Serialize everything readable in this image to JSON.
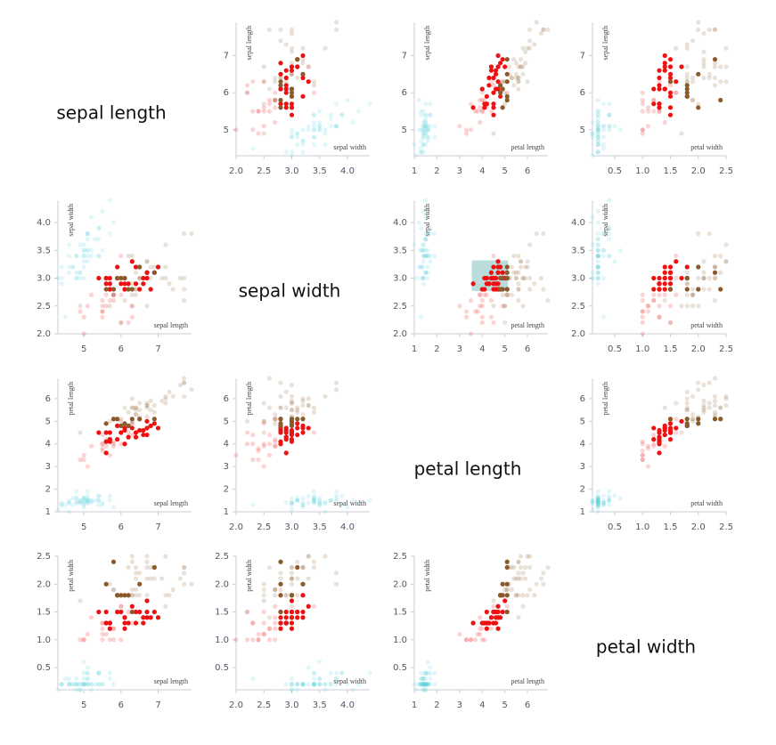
{
  "chart_data": {
    "type": "scatter_matrix",
    "variables": [
      {
        "name": "sepal length",
        "lim": [
          4.3,
          7.9
        ],
        "ticks": [
          5,
          6,
          7
        ]
      },
      {
        "name": "sepal width",
        "lim": [
          2.0,
          4.4
        ],
        "ticks": [
          {
            "value": 2,
            "label": "2.0"
          },
          2.5,
          {
            "value": 3,
            "label": "3.0"
          },
          3.5,
          {
            "value": 4,
            "label": "4.0"
          }
        ]
      },
      {
        "name": "petal length",
        "lim": [
          1,
          6.9
        ],
        "ticks": [
          1,
          2,
          3,
          4,
          5,
          6
        ]
      },
      {
        "name": "petal width",
        "lim": [
          0.1,
          2.5
        ],
        "ticks": [
          0.5,
          {
            "value": 1,
            "label": "1.0"
          },
          1.5,
          {
            "value": 2,
            "label": "2.0"
          },
          2.5
        ]
      }
    ],
    "brush": {
      "xvar": 2,
      "yvar": 1,
      "xlim": [
        3.54,
        5.14
      ],
      "ylim": [
        2.77,
        3.32
      ],
      "color": "#7fbfbf"
    },
    "series": [
      {
        "color": "#5fd3e0",
        "points": [
          [
            5.1,
            3.5,
            1.4,
            0.2
          ],
          [
            4.9,
            3.0,
            1.4,
            0.2
          ],
          [
            4.7,
            3.2,
            1.3,
            0.2
          ],
          [
            4.6,
            3.1,
            1.5,
            0.2
          ],
          [
            5.0,
            3.6,
            1.4,
            0.2
          ],
          [
            5.4,
            3.9,
            1.7,
            0.4
          ],
          [
            4.6,
            3.4,
            1.4,
            0.3
          ],
          [
            5.0,
            3.4,
            1.5,
            0.2
          ],
          [
            4.4,
            2.9,
            1.4,
            0.2
          ],
          [
            4.9,
            3.1,
            1.5,
            0.1
          ],
          [
            5.4,
            3.7,
            1.5,
            0.2
          ],
          [
            4.8,
            3.4,
            1.6,
            0.2
          ],
          [
            4.8,
            3.0,
            1.4,
            0.1
          ],
          [
            4.3,
            3.0,
            1.1,
            0.1
          ],
          [
            5.8,
            4.0,
            1.2,
            0.2
          ],
          [
            5.7,
            4.4,
            1.5,
            0.4
          ],
          [
            5.4,
            3.9,
            1.3,
            0.4
          ],
          [
            5.1,
            3.5,
            1.4,
            0.3
          ],
          [
            5.7,
            3.8,
            1.7,
            0.3
          ],
          [
            5.1,
            3.8,
            1.5,
            0.3
          ],
          [
            5.4,
            3.4,
            1.7,
            0.2
          ],
          [
            5.1,
            3.7,
            1.5,
            0.4
          ],
          [
            4.6,
            3.6,
            1.0,
            0.2
          ],
          [
            5.1,
            3.3,
            1.7,
            0.5
          ],
          [
            4.8,
            3.4,
            1.9,
            0.2
          ],
          [
            5.0,
            3.0,
            1.6,
            0.2
          ],
          [
            5.0,
            3.4,
            1.6,
            0.4
          ],
          [
            5.2,
            3.5,
            1.5,
            0.2
          ],
          [
            5.2,
            3.4,
            1.4,
            0.2
          ],
          [
            4.7,
            3.2,
            1.6,
            0.2
          ],
          [
            4.8,
            3.1,
            1.6,
            0.2
          ],
          [
            5.4,
            3.4,
            1.5,
            0.4
          ],
          [
            5.2,
            4.1,
            1.5,
            0.1
          ],
          [
            5.5,
            4.2,
            1.4,
            0.2
          ],
          [
            4.9,
            3.1,
            1.5,
            0.2
          ],
          [
            5.0,
            3.2,
            1.2,
            0.2
          ],
          [
            5.5,
            3.5,
            1.3,
            0.2
          ],
          [
            4.9,
            3.6,
            1.4,
            0.1
          ],
          [
            4.4,
            3.0,
            1.3,
            0.2
          ],
          [
            5.1,
            3.4,
            1.5,
            0.2
          ],
          [
            5.0,
            3.5,
            1.3,
            0.3
          ],
          [
            4.5,
            2.3,
            1.3,
            0.3
          ],
          [
            4.4,
            3.2,
            1.3,
            0.2
          ],
          [
            5.0,
            3.5,
            1.6,
            0.6
          ],
          [
            5.1,
            3.8,
            1.9,
            0.4
          ],
          [
            4.8,
            3.0,
            1.4,
            0.3
          ],
          [
            5.1,
            3.8,
            1.6,
            0.2
          ],
          [
            4.6,
            3.2,
            1.4,
            0.2
          ],
          [
            5.3,
            3.7,
            1.5,
            0.2
          ],
          [
            5.0,
            3.3,
            1.4,
            0.2
          ]
        ]
      },
      {
        "color": "#ee1111",
        "points": [
          [
            7.0,
            3.2,
            4.7,
            1.4
          ],
          [
            6.4,
            3.2,
            4.5,
            1.5
          ],
          [
            6.9,
            3.1,
            4.9,
            1.5
          ],
          [
            5.5,
            2.3,
            4.0,
            1.3
          ],
          [
            6.5,
            2.8,
            4.6,
            1.5
          ],
          [
            5.7,
            2.8,
            4.5,
            1.3
          ],
          [
            6.3,
            3.3,
            4.7,
            1.6
          ],
          [
            4.9,
            2.4,
            3.3,
            1.0
          ],
          [
            6.6,
            2.9,
            4.6,
            1.3
          ],
          [
            5.2,
            2.7,
            3.9,
            1.4
          ],
          [
            5.0,
            2.0,
            3.5,
            1.0
          ],
          [
            5.9,
            3.0,
            4.2,
            1.5
          ],
          [
            6.0,
            2.2,
            4.0,
            1.0
          ],
          [
            6.1,
            2.9,
            4.7,
            1.4
          ],
          [
            5.6,
            2.9,
            3.6,
            1.3
          ],
          [
            6.7,
            3.1,
            4.4,
            1.4
          ],
          [
            5.6,
            3.0,
            4.5,
            1.5
          ],
          [
            5.8,
            2.7,
            4.1,
            1.0
          ],
          [
            6.2,
            2.2,
            4.5,
            1.5
          ],
          [
            5.6,
            2.5,
            3.9,
            1.1
          ],
          [
            5.9,
            3.2,
            4.8,
            1.8
          ],
          [
            6.1,
            2.8,
            4.0,
            1.3
          ],
          [
            6.3,
            2.5,
            4.9,
            1.5
          ],
          [
            6.1,
            2.8,
            4.7,
            1.2
          ],
          [
            6.4,
            2.9,
            4.3,
            1.3
          ],
          [
            6.6,
            3.0,
            4.4,
            1.4
          ],
          [
            6.8,
            2.8,
            4.8,
            1.4
          ],
          [
            6.7,
            3.0,
            5.0,
            1.7
          ],
          [
            6.0,
            2.9,
            4.5,
            1.5
          ],
          [
            5.7,
            2.6,
            3.5,
            1.0
          ],
          [
            5.5,
            2.4,
            3.8,
            1.1
          ],
          [
            5.5,
            2.4,
            3.7,
            1.0
          ],
          [
            5.8,
            2.7,
            3.9,
            1.2
          ],
          [
            6.0,
            2.7,
            5.1,
            1.6
          ],
          [
            5.4,
            3.0,
            4.5,
            1.5
          ],
          [
            6.0,
            3.4,
            4.5,
            1.6
          ],
          [
            6.7,
            3.1,
            4.7,
            1.5
          ],
          [
            6.3,
            2.3,
            4.4,
            1.3
          ],
          [
            5.6,
            3.0,
            4.1,
            1.3
          ],
          [
            5.5,
            2.5,
            4.0,
            1.3
          ],
          [
            5.5,
            2.6,
            4.4,
            1.2
          ],
          [
            6.1,
            3.0,
            4.6,
            1.4
          ],
          [
            5.8,
            2.6,
            4.0,
            1.2
          ],
          [
            5.0,
            2.3,
            3.3,
            1.0
          ],
          [
            5.6,
            2.7,
            4.2,
            1.3
          ],
          [
            5.7,
            3.0,
            4.2,
            1.2
          ],
          [
            5.7,
            2.9,
            4.2,
            1.3
          ],
          [
            6.2,
            2.9,
            4.3,
            1.3
          ],
          [
            5.1,
            2.5,
            3.0,
            1.1
          ],
          [
            5.7,
            2.8,
            4.1,
            1.3
          ]
        ]
      },
      {
        "color": "#8b5a2b",
        "points": [
          [
            6.3,
            3.3,
            6.0,
            2.5
          ],
          [
            5.8,
            2.7,
            5.1,
            1.9
          ],
          [
            7.1,
            3.0,
            5.9,
            2.1
          ],
          [
            6.3,
            2.9,
            5.6,
            1.8
          ],
          [
            6.5,
            3.0,
            5.8,
            2.2
          ],
          [
            7.6,
            3.0,
            6.6,
            2.1
          ],
          [
            4.9,
            2.5,
            4.5,
            1.7
          ],
          [
            7.3,
            2.9,
            6.3,
            1.8
          ],
          [
            6.7,
            2.5,
            5.8,
            1.8
          ],
          [
            7.2,
            3.6,
            6.1,
            2.5
          ],
          [
            6.5,
            3.2,
            5.1,
            2.0
          ],
          [
            6.4,
            2.7,
            5.3,
            1.9
          ],
          [
            6.8,
            3.0,
            5.5,
            2.1
          ],
          [
            5.7,
            2.5,
            5.0,
            2.0
          ],
          [
            5.8,
            2.8,
            5.1,
            2.4
          ],
          [
            6.4,
            3.2,
            5.3,
            2.3
          ],
          [
            6.5,
            3.0,
            5.5,
            1.8
          ],
          [
            7.7,
            3.8,
            6.7,
            2.2
          ],
          [
            7.7,
            2.6,
            6.9,
            2.3
          ],
          [
            6.0,
            2.2,
            5.0,
            1.5
          ],
          [
            6.9,
            3.2,
            5.7,
            2.3
          ],
          [
            5.6,
            2.8,
            4.9,
            2.0
          ],
          [
            7.7,
            2.8,
            6.7,
            2.0
          ],
          [
            6.3,
            2.7,
            4.9,
            1.8
          ],
          [
            6.7,
            3.3,
            5.7,
            2.1
          ],
          [
            7.2,
            3.2,
            6.0,
            1.8
          ],
          [
            6.2,
            2.8,
            4.8,
            1.8
          ],
          [
            6.1,
            3.0,
            4.9,
            1.8
          ],
          [
            6.4,
            2.8,
            5.6,
            2.1
          ],
          [
            7.2,
            3.0,
            5.8,
            1.6
          ],
          [
            7.4,
            2.8,
            6.1,
            1.9
          ],
          [
            7.9,
            3.8,
            6.4,
            2.0
          ],
          [
            6.4,
            2.8,
            5.6,
            2.2
          ],
          [
            6.3,
            2.8,
            5.1,
            1.5
          ],
          [
            6.1,
            2.6,
            5.6,
            1.4
          ],
          [
            7.7,
            3.0,
            6.1,
            2.3
          ],
          [
            6.3,
            3.4,
            5.6,
            2.4
          ],
          [
            6.4,
            3.1,
            5.5,
            1.8
          ],
          [
            6.0,
            3.0,
            4.8,
            1.8
          ],
          [
            6.9,
            3.1,
            5.4,
            2.1
          ],
          [
            6.7,
            3.1,
            5.6,
            2.4
          ],
          [
            6.9,
            3.1,
            5.1,
            2.3
          ],
          [
            5.8,
            2.7,
            5.1,
            1.9
          ],
          [
            6.8,
            3.2,
            5.9,
            2.3
          ],
          [
            6.7,
            3.3,
            5.7,
            2.5
          ],
          [
            6.7,
            3.0,
            5.2,
            2.3
          ],
          [
            6.3,
            2.5,
            5.0,
            1.9
          ],
          [
            6.5,
            3.0,
            5.2,
            2.0
          ],
          [
            6.2,
            3.4,
            5.4,
            2.3
          ],
          [
            5.9,
            3.0,
            5.1,
            1.8
          ]
        ]
      }
    ]
  }
}
